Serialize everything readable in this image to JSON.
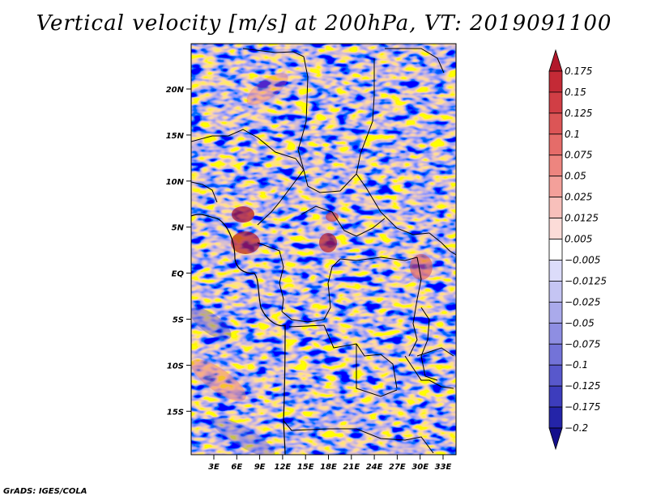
{
  "title": "Vertical velocity [m/s] at 200hPa, VT: 2019091100",
  "footer": "GrADS: IGES/COLA",
  "map": {
    "lat_labels": [
      "20N",
      "15N",
      "10N",
      "5N",
      "EQ",
      "5S",
      "10S",
      "15S"
    ],
    "lon_labels": [
      "3E",
      "6E",
      "9E",
      "12E",
      "15E",
      "18E",
      "21E",
      "24E",
      "27E",
      "30E",
      "33E"
    ]
  },
  "colorbar": {
    "levels": [
      "0.175",
      "0.15",
      "0.125",
      "0.1",
      "0.075",
      "0.05",
      "0.025",
      "0.0125",
      "0.005",
      "−0.005",
      "−0.0125",
      "−0.025",
      "−0.05",
      "−0.075",
      "−0.1",
      "−0.125",
      "−0.175",
      "−0.2"
    ],
    "colors": [
      "#b2182b",
      "#c42a36",
      "#d13e45",
      "#dc5556",
      "#e56c69",
      "#ed857f",
      "#f3a09a",
      "#f8c0bb",
      "#fcdcd8",
      "#ffffff",
      "#dcdcfa",
      "#c5c5f3",
      "#aaaaeb",
      "#8e8ee2",
      "#7373d8",
      "#5858cc",
      "#3d3dbd",
      "#2424a8",
      "#140f8c"
    ]
  }
}
